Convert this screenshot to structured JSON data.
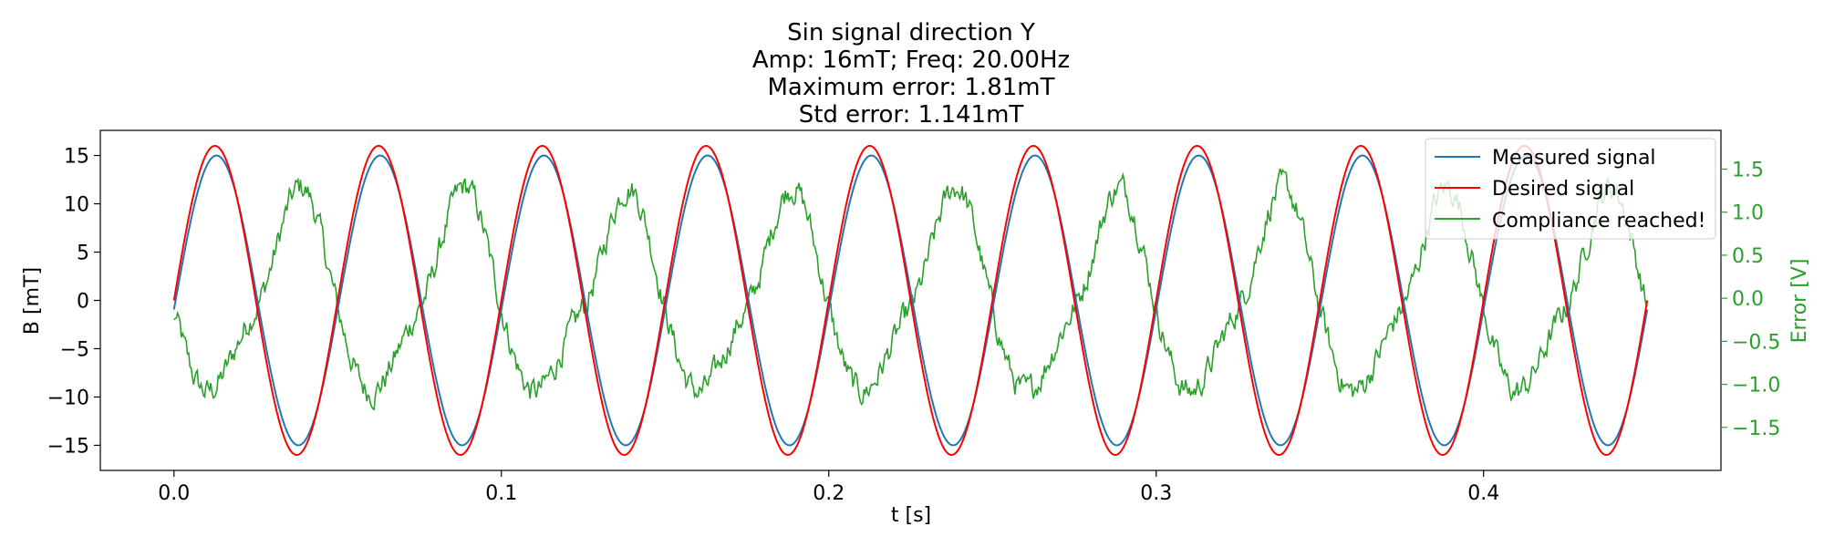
{
  "chart_data": {
    "type": "line",
    "title": [
      "Sin signal direction Y",
      "Amp: 16mT; Freq: 20.00Hz",
      "Maximum error: 1.81mT",
      "Std error: 1.141mT"
    ],
    "xlabel": "t [s]",
    "ylabel": "B [mT]",
    "y2label": "Error [V]",
    "xlim": [
      -0.0225,
      0.4725
    ],
    "ylim": [
      -17.6,
      17.6
    ],
    "y2lim": [
      -2.0,
      1.95
    ],
    "x_ticks": [
      0.0,
      0.1,
      0.2,
      0.3,
      0.4
    ],
    "x_tick_labels": [
      "0.0",
      "0.1",
      "0.2",
      "0.3",
      "0.4"
    ],
    "y_ticks": [
      -15,
      -10,
      -5,
      0,
      5,
      10,
      15
    ],
    "y_tick_labels": [
      "−15",
      "−10",
      "−5",
      "0",
      "5",
      "10",
      "15"
    ],
    "y2_ticks": [
      -1.5,
      -1.0,
      -0.5,
      0.0,
      0.5,
      1.0,
      1.5
    ],
    "y2_tick_labels": [
      "−1.5",
      "−1.0",
      "−0.5",
      "0.0",
      "0.5",
      "1.0",
      "1.5"
    ],
    "grid": false,
    "legend_position": "top-right",
    "x_range": [
      0.0,
      0.45
    ],
    "series": [
      {
        "name": "Measured signal",
        "axis": "left",
        "color": "#1f77b4",
        "function": "sine",
        "amplitude": 15.0,
        "frequency_hz": 20.0,
        "phase_offset_s": 0.0005
      },
      {
        "name": "Desired signal",
        "axis": "left",
        "color": "#ff0000",
        "function": "sine",
        "amplitude": 16.0,
        "frequency_hz": 20.0,
        "phase_offset_s": 0.0
      },
      {
        "name": "Compliance reached!",
        "axis": "right",
        "color": "#2ca02c",
        "function": "error",
        "amplitude": 1.5,
        "frequency_hz": 20.0,
        "start_value": -0.25,
        "noise": 0.08
      }
    ]
  }
}
